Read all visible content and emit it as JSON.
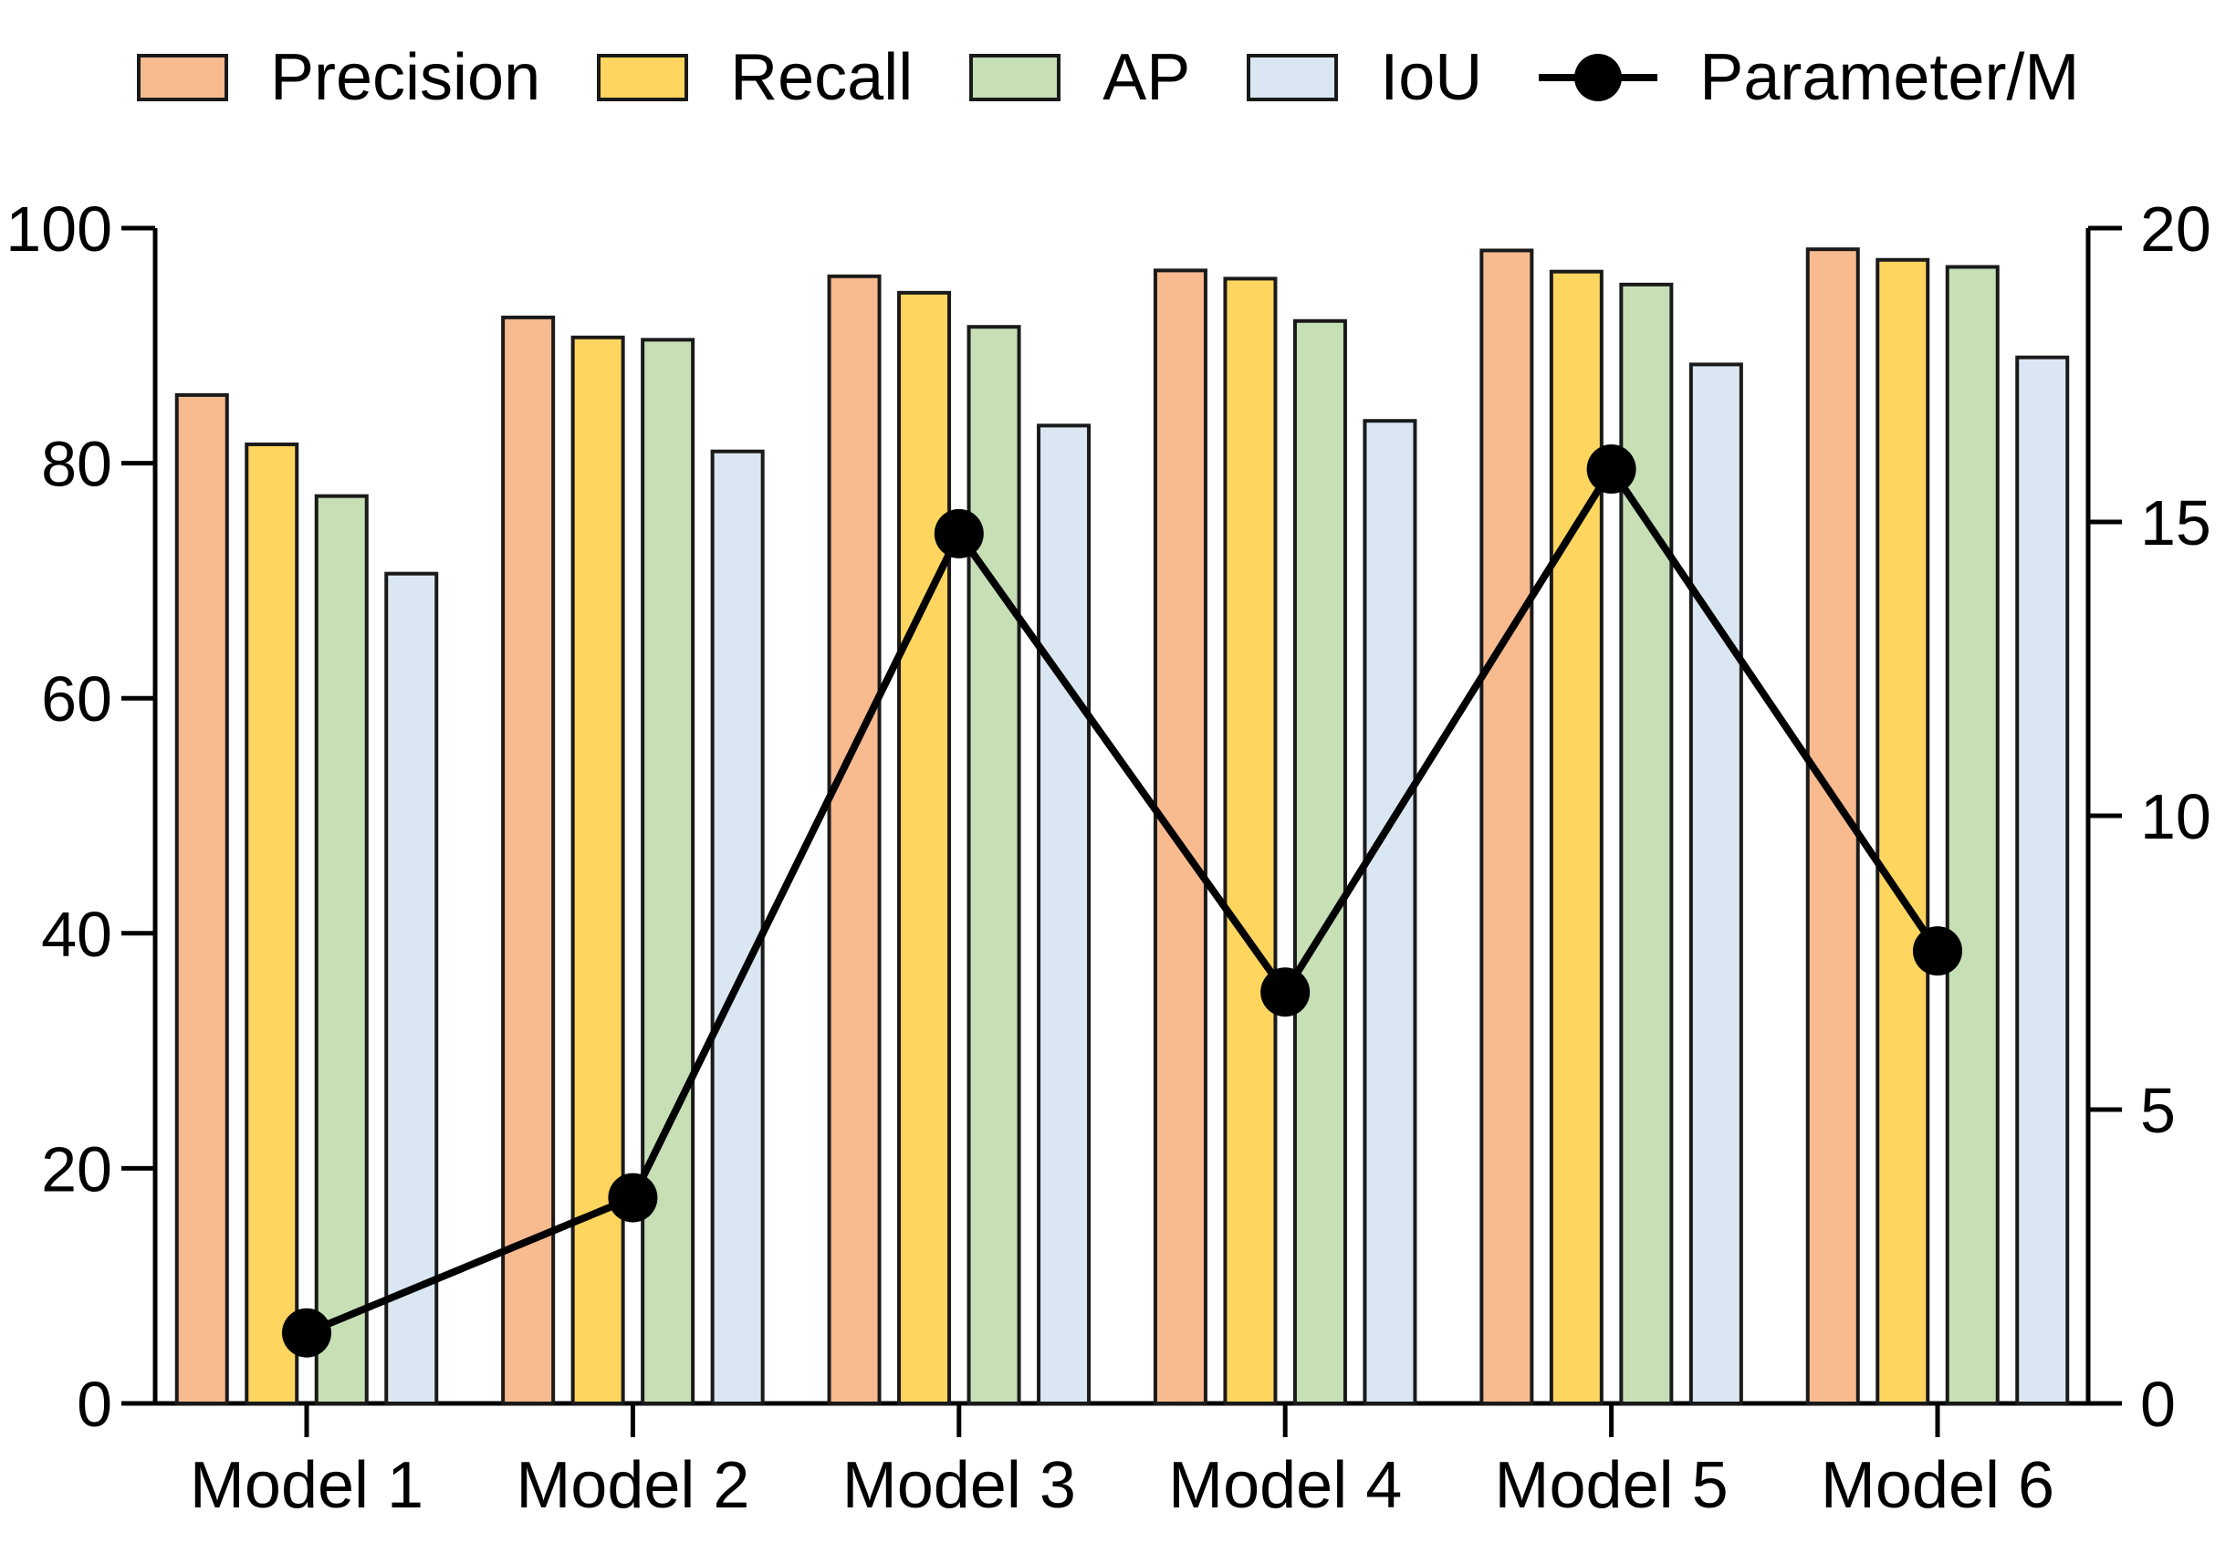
{
  "chart_data": {
    "type": "bar",
    "title": "",
    "categories": [
      "Model 1",
      "Model 2",
      "Model 3",
      "Model 4",
      "Model 5",
      "Model 6"
    ],
    "series": [
      {
        "name": "Precision",
        "color": "#F8BA8F",
        "values": [
          85.8,
          92.4,
          95.9,
          96.4,
          98.1,
          98.2
        ]
      },
      {
        "name": "Recall",
        "color": "#FDD55F",
        "values": [
          81.6,
          90.7,
          94.5,
          95.7,
          96.3,
          97.3
        ]
      },
      {
        "name": "AP",
        "color": "#C6DFB5",
        "values": [
          77.2,
          90.5,
          91.6,
          92.1,
          95.2,
          96.7
        ]
      },
      {
        "name": "IoU",
        "color": "#DAE7F3",
        "values": [
          70.6,
          81.0,
          83.2,
          83.6,
          88.4,
          89.0
        ]
      }
    ],
    "line_series": {
      "name": "Parameter/M",
      "color": "#000000",
      "axis": "right",
      "values": [
        1.2,
        3.5,
        14.8,
        7.0,
        15.9,
        7.7
      ]
    },
    "left_axis": {
      "range": [
        0,
        100
      ],
      "ticks": [
        0,
        20,
        40,
        60,
        80,
        100
      ]
    },
    "right_axis": {
      "range": [
        0,
        20
      ],
      "ticks": [
        0,
        5,
        10,
        15,
        20
      ]
    },
    "legend_position": "top",
    "grid": false,
    "bar_edge_color": "#1a1a1a",
    "axis_color": "#000000"
  }
}
